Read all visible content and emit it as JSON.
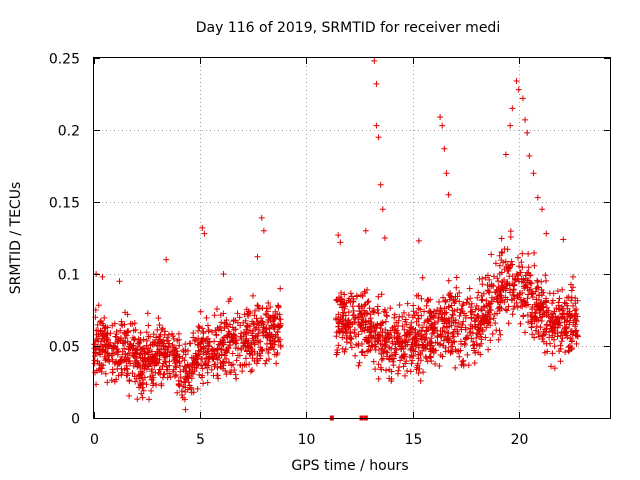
{
  "chart_data": {
    "type": "scatter",
    "title": "Day 116 of 2019, SRMTID for receiver medi",
    "xlabel": "GPS time / hours",
    "ylabel": "SRMTID / TECUs",
    "xlim": [
      0,
      24.3
    ],
    "ylim": [
      0,
      0.25
    ],
    "grid": true,
    "x_ticks": [
      0,
      5,
      10,
      15,
      20
    ],
    "x_tick_labels": [
      "0",
      "5",
      "10",
      "15",
      "20"
    ],
    "y_ticks": [
      0,
      0.05,
      0.1,
      0.15,
      0.2,
      0.25
    ],
    "y_tick_labels": [
      "0",
      "0.05",
      "0.1",
      "0.15",
      "0.2",
      "0.25"
    ],
    "color": "#e00000",
    "series": [
      {
        "name": "SRMTID",
        "segments": [
          {
            "start": 0.0,
            "end": 8.8,
            "base": 0.05,
            "spread": 0.022
          },
          {
            "start": 11.4,
            "end": 22.8,
            "base": 0.06,
            "spread": 0.025
          }
        ],
        "trend": [
          [
            0.0,
            0.05
          ],
          [
            1.5,
            0.045
          ],
          [
            2.5,
            0.04
          ],
          [
            3.5,
            0.048
          ],
          [
            4.2,
            0.03
          ],
          [
            5.0,
            0.045
          ],
          [
            6.0,
            0.05
          ],
          [
            7.0,
            0.055
          ],
          [
            8.0,
            0.06
          ],
          [
            8.8,
            0.06
          ],
          [
            11.4,
            0.07
          ],
          [
            12.5,
            0.065
          ],
          [
            13.5,
            0.055
          ],
          [
            14.5,
            0.05
          ],
          [
            15.5,
            0.06
          ],
          [
            16.5,
            0.065
          ],
          [
            17.5,
            0.06
          ],
          [
            18.5,
            0.075
          ],
          [
            19.5,
            0.095
          ],
          [
            20.5,
            0.085
          ],
          [
            21.5,
            0.065
          ],
          [
            22.8,
            0.07
          ]
        ],
        "outliers": [
          [
            0.1,
            0.1
          ],
          [
            0.4,
            0.098
          ],
          [
            1.2,
            0.095
          ],
          [
            3.4,
            0.11
          ],
          [
            5.1,
            0.132
          ],
          [
            5.2,
            0.128
          ],
          [
            6.1,
            0.1
          ],
          [
            7.7,
            0.112
          ],
          [
            7.9,
            0.139
          ],
          [
            8.0,
            0.13
          ],
          [
            11.5,
            0.127
          ],
          [
            11.6,
            0.122
          ],
          [
            12.8,
            0.13
          ],
          [
            13.2,
            0.248
          ],
          [
            13.3,
            0.232
          ],
          [
            13.3,
            0.203
          ],
          [
            13.4,
            0.195
          ],
          [
            13.5,
            0.162
          ],
          [
            13.6,
            0.145
          ],
          [
            13.7,
            0.125
          ],
          [
            15.3,
            0.123
          ],
          [
            16.3,
            0.209
          ],
          [
            16.4,
            0.203
          ],
          [
            16.5,
            0.187
          ],
          [
            16.6,
            0.17
          ],
          [
            16.7,
            0.155
          ],
          [
            19.4,
            0.183
          ],
          [
            19.6,
            0.203
          ],
          [
            19.7,
            0.215
          ],
          [
            19.9,
            0.234
          ],
          [
            20.0,
            0.228
          ],
          [
            20.2,
            0.222
          ],
          [
            20.3,
            0.207
          ],
          [
            20.4,
            0.198
          ],
          [
            20.5,
            0.182
          ],
          [
            20.7,
            0.17
          ],
          [
            20.9,
            0.153
          ],
          [
            21.1,
            0.145
          ],
          [
            21.3,
            0.128
          ],
          [
            22.1,
            0.124
          ]
        ],
        "zero_markers": [
          11.2,
          12.6,
          12.8
        ]
      }
    ]
  }
}
